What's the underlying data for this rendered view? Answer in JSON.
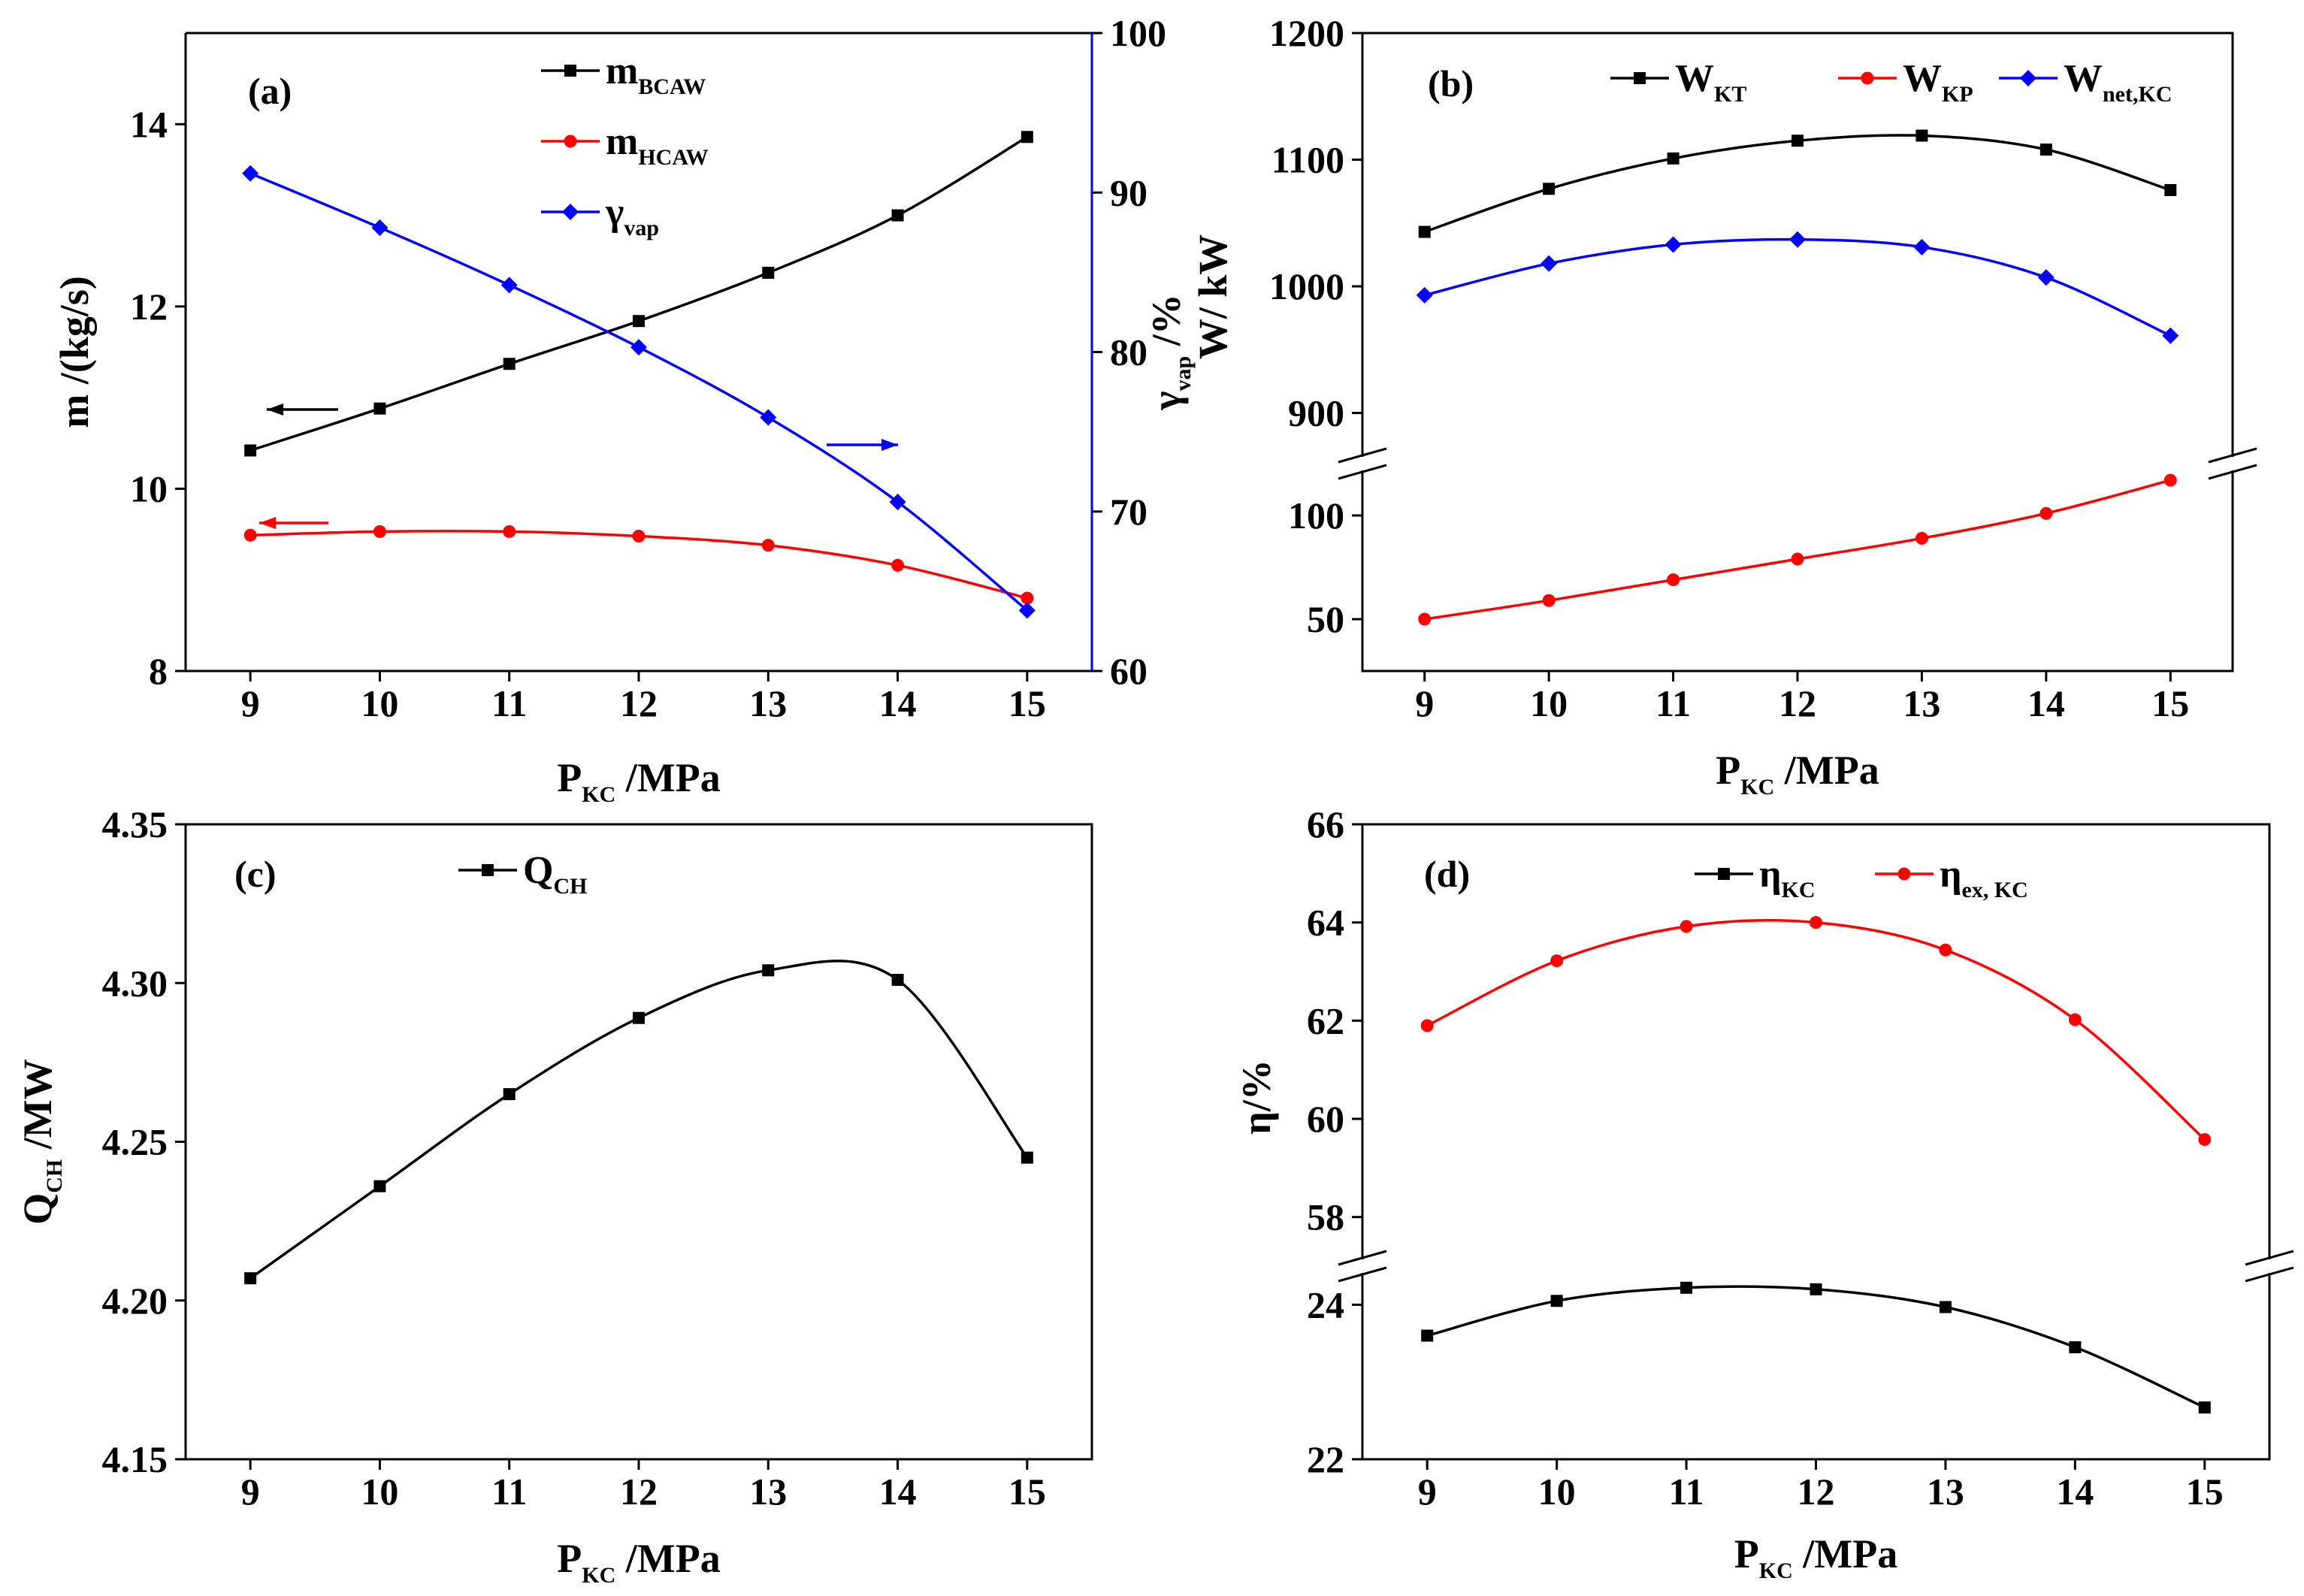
{
  "chart_data": [
    {
      "panel": "a",
      "type": "line",
      "panel_label": "(a)",
      "x": [
        9,
        10,
        11,
        12,
        13,
        14,
        15
      ],
      "xlim": [
        8.5,
        15.5
      ],
      "xticks": [
        "9",
        "10",
        "11",
        "12",
        "13",
        "14",
        "15"
      ],
      "xlabel": {
        "main": "P",
        "sub": "KC",
        "tail": " /MPa"
      },
      "ylabel": {
        "main": "m /(kg/s)"
      },
      "ylim": [
        8,
        15
      ],
      "yticks": [
        "8",
        "10",
        "12",
        "14"
      ],
      "y2label": {
        "main": "γ",
        "sub": "vap",
        "tail": " /%"
      },
      "y2lim": [
        60,
        100
      ],
      "y2ticks": [
        "60",
        "70",
        "80",
        "90",
        "100"
      ],
      "series": [
        {
          "name": {
            "main": "m",
            "sub": "BCAW"
          },
          "axis": "left",
          "color": "#000000",
          "marker": "square",
          "values": [
            10.42,
            10.88,
            11.37,
            11.84,
            12.37,
            13.0,
            13.86
          ]
        },
        {
          "name": {
            "main": "m",
            "sub": "HCAW"
          },
          "axis": "left",
          "color": "#ff0000",
          "marker": "circle",
          "values": [
            9.49,
            9.53,
            9.53,
            9.48,
            9.38,
            9.16,
            8.8
          ]
        },
        {
          "name": {
            "main": "γ",
            "sub": "vap"
          },
          "axis": "right",
          "color": "#0000ff",
          "marker": "diamond",
          "values": [
            91.2,
            87.8,
            84.2,
            80.3,
            75.9,
            70.6,
            63.8
          ]
        }
      ]
    },
    {
      "panel": "b",
      "type": "line",
      "panel_label": "(b)",
      "x": [
        9,
        10,
        11,
        12,
        13,
        14,
        15
      ],
      "xlim": [
        8.5,
        15.5
      ],
      "xticks": [
        "9",
        "10",
        "11",
        "12",
        "13",
        "14",
        "15"
      ],
      "xlabel": {
        "main": "P",
        "sub": "KC",
        "tail": " /MPa"
      },
      "ylabel": {
        "main": "W/ kW"
      },
      "broken_axis": true,
      "upper_ylim": [
        860,
        1200
      ],
      "upper_yticks": [
        "900",
        "1000",
        "1100",
        "1200"
      ],
      "lower_ylim": [
        25,
        125
      ],
      "lower_yticks": [
        "50",
        "100"
      ],
      "series": [
        {
          "name": {
            "main": "W",
            "sub": "KT"
          },
          "segment": "upper",
          "color": "#000000",
          "marker": "square",
          "values": [
            1043,
            1077,
            1101,
            1115,
            1119,
            1108,
            1076
          ]
        },
        {
          "name": {
            "main": "W",
            "sub": "KP"
          },
          "segment": "lower",
          "color": "#ff0000",
          "marker": "circle",
          "values": [
            50,
            59,
            69,
            79,
            89,
            101,
            117
          ]
        },
        {
          "name": {
            "main": "W",
            "sub": "net,KC"
          },
          "segment": "upper",
          "color": "#0000ff",
          "marker": "diamond",
          "values": [
            993,
            1018,
            1033,
            1037,
            1031,
            1007,
            961
          ]
        }
      ]
    },
    {
      "panel": "c",
      "type": "line",
      "panel_label": "(c)",
      "x": [
        9,
        10,
        11,
        12,
        13,
        14,
        15
      ],
      "xlim": [
        8.5,
        15.5
      ],
      "xticks": [
        "9",
        "10",
        "11",
        "12",
        "13",
        "14",
        "15"
      ],
      "xlabel": {
        "main": "P",
        "sub": "KC",
        "tail": " /MPa"
      },
      "ylabel": {
        "main": "Q",
        "sub": "CH",
        "tail": " /MW"
      },
      "ylim": [
        4.15,
        4.35
      ],
      "yticks": [
        "4.15",
        "4.20",
        "4.25",
        "4.30",
        "4.35"
      ],
      "series": [
        {
          "name": {
            "main": "Q",
            "sub": "CH"
          },
          "color": "#000000",
          "marker": "square",
          "values": [
            4.207,
            4.236,
            4.265,
            4.289,
            4.304,
            4.301,
            4.245
          ]
        }
      ]
    },
    {
      "panel": "d",
      "type": "line",
      "panel_label": "(d)",
      "x": [
        9,
        10,
        11,
        12,
        13,
        14,
        15
      ],
      "xlim": [
        8.5,
        15.5
      ],
      "xticks": [
        "9",
        "10",
        "11",
        "12",
        "13",
        "14",
        "15"
      ],
      "xlabel": {
        "main": "P",
        "sub": "KC",
        "tail": " /MPa"
      },
      "ylabel": {
        "main": "η/%"
      },
      "broken_axis": true,
      "upper_ylim": [
        57,
        66
      ],
      "upper_yticks": [
        "58",
        "60",
        "62",
        "64",
        "66"
      ],
      "lower_ylim": [
        22,
        24.5
      ],
      "lower_yticks": [
        "22",
        "24"
      ],
      "series": [
        {
          "name": {
            "main": "η",
            "sub": "KC"
          },
          "segment": "lower",
          "color": "#000000",
          "marker": "square",
          "values": [
            23.6,
            24.05,
            24.22,
            24.2,
            23.97,
            23.45,
            22.67
          ]
        },
        {
          "name": {
            "main": "η",
            "sub": "ex, KC"
          },
          "segment": "upper",
          "color": "#ff0000",
          "marker": "circle",
          "values": [
            61.9,
            63.22,
            63.92,
            64.0,
            63.44,
            62.02,
            59.58
          ]
        }
      ]
    }
  ]
}
